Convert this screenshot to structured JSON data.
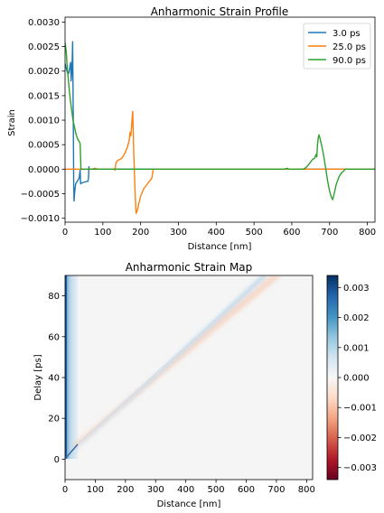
{
  "chart_data": [
    {
      "type": "line",
      "title": "Anharmonic Strain Profile",
      "xlabel": "Distance [nm]",
      "ylabel": "Strain",
      "xlim": [
        0,
        820
      ],
      "ylim": [
        -0.00108,
        0.0031
      ],
      "xticks": [
        0,
        100,
        200,
        300,
        400,
        500,
        600,
        700,
        800
      ],
      "xtick_labels": [
        "0",
        "100",
        "200",
        "300",
        "400",
        "500",
        "600",
        "700",
        "800"
      ],
      "yticks": [
        -0.001,
        -0.0005,
        0,
        0.0005,
        0.001,
        0.0015,
        0.002,
        0.0025,
        0.003
      ],
      "ytick_labels": [
        "−0.0010",
        "−0.0005",
        "0.0000",
        "0.0005",
        "0.0010",
        "0.0015",
        "0.0020",
        "0.0025",
        "0.0030"
      ],
      "legend_position": "top-right",
      "grid": false,
      "series": [
        {
          "name": "3.0 ps",
          "color": "#1f77b4",
          "points": [
            [
              0,
              0.00215
            ],
            [
              3,
              0.00205
            ],
            [
              6,
              0.00198
            ],
            [
              9,
              0.00195
            ],
            [
              11,
              0.002
            ],
            [
              13,
              0.0021
            ],
            [
              15,
              0.00218
            ],
            [
              16,
              0.0018
            ],
            [
              17,
              0.0019
            ],
            [
              18,
              0.002
            ],
            [
              19,
              0.0022
            ],
            [
              20,
              0.0026
            ],
            [
              21,
              0.0017
            ],
            [
              22,
              0.0008
            ],
            [
              23,
              -0.00035
            ],
            [
              24,
              -0.00065
            ],
            [
              25,
              -0.0005
            ],
            [
              28,
              -0.0003
            ],
            [
              32,
              -0.00025
            ],
            [
              36,
              -0.0002
            ],
            [
              38,
              -0.00015
            ],
            [
              40,
              0.0
            ],
            [
              41,
              -0.0003
            ],
            [
              44,
              -0.00028
            ],
            [
              48,
              -0.00027
            ],
            [
              52,
              -0.00026
            ],
            [
              56,
              -0.00025
            ],
            [
              60,
              -0.00025
            ],
            [
              62,
              -0.0002
            ],
            [
              63,
              5e-05
            ],
            [
              64,
              0.0
            ],
            [
              70,
              0.0
            ],
            [
              90,
              0.0
            ],
            [
              820,
              0.0
            ]
          ]
        },
        {
          "name": "25.0 ps",
          "color": "#ff7f0e",
          "points": [
            [
              0,
              0.0
            ],
            [
              70,
              0.0
            ],
            [
              80,
              2e-05
            ],
            [
              85,
              0.0
            ],
            [
              130,
              0.0
            ],
            [
              132,
              -2e-05
            ],
            [
              134,
              0.0001
            ],
            [
              136,
              0.00015
            ],
            [
              140,
              0.00018
            ],
            [
              145,
              0.0002
            ],
            [
              150,
              0.00022
            ],
            [
              155,
              0.00028
            ],
            [
              160,
              0.00035
            ],
            [
              165,
              0.00045
            ],
            [
              170,
              0.0006
            ],
            [
              172,
              0.00075
            ],
            [
              174,
              0.00068
            ],
            [
              176,
              0.00085
            ],
            [
              178,
              0.0011
            ],
            [
              179,
              0.00118
            ],
            [
              180,
              0.0009
            ],
            [
              182,
              0.0003
            ],
            [
              184,
              -0.0002
            ],
            [
              186,
              -0.0006
            ],
            [
              188,
              -0.0009
            ],
            [
              191,
              -0.00085
            ],
            [
              195,
              -0.0007
            ],
            [
              200,
              -0.00055
            ],
            [
              205,
              -0.00045
            ],
            [
              210,
              -0.00038
            ],
            [
              215,
              -0.00033
            ],
            [
              220,
              -0.00028
            ],
            [
              225,
              -0.00023
            ],
            [
              228,
              -0.0002
            ],
            [
              230,
              -0.00017
            ],
            [
              232,
              -5e-05
            ],
            [
              234,
              0.0
            ],
            [
              240,
              0.0
            ],
            [
              820,
              0.0
            ]
          ]
        },
        {
          "name": "90.0 ps",
          "color": "#2ca02c",
          "points": [
            [
              0,
              0.00258
            ],
            [
              3,
              0.0024
            ],
            [
              6,
              0.00205
            ],
            [
              9,
              0.0018
            ],
            [
              12,
              0.00155
            ],
            [
              15,
              0.00135
            ],
            [
              18,
              0.00118
            ],
            [
              21,
              0.001
            ],
            [
              25,
              0.00085
            ],
            [
              29,
              0.00072
            ],
            [
              33,
              0.00062
            ],
            [
              37,
              0.00057
            ],
            [
              40,
              0.00052
            ],
            [
              42,
              0.0
            ],
            [
              50,
              0.0
            ],
            [
              580,
              0.0
            ],
            [
              588,
              2e-05
            ],
            [
              592,
              0.0
            ],
            [
              630,
              0.0
            ],
            [
              635,
              2e-05
            ],
            [
              640,
              5e-05
            ],
            [
              645,
              0.0001
            ],
            [
              650,
              0.00015
            ],
            [
              655,
              0.0002
            ],
            [
              660,
              0.00022
            ],
            [
              664,
              0.0003
            ],
            [
              666,
              0.00025
            ],
            [
              668,
              0.0005
            ],
            [
              670,
              0.00065
            ],
            [
              672,
              0.0007
            ],
            [
              675,
              0.00062
            ],
            [
              680,
              0.00045
            ],
            [
              685,
              0.00025
            ],
            [
              690,
              0.0
            ],
            [
              695,
              -0.00025
            ],
            [
              700,
              -0.00045
            ],
            [
              705,
              -0.00058
            ],
            [
              708,
              -0.00062
            ],
            [
              712,
              -0.0005
            ],
            [
              718,
              -0.0003
            ],
            [
              725,
              -0.00015
            ],
            [
              732,
              -7e-05
            ],
            [
              738,
              -3e-05
            ],
            [
              741,
              0.0
            ],
            [
              745,
              0.0
            ],
            [
              820,
              0.0
            ]
          ]
        }
      ]
    },
    {
      "type": "heatmap",
      "title": "Anharmonic Strain Map",
      "xlabel": "Distance [nm]",
      "ylabel": "Delay [ps]",
      "xlim": [
        0,
        820
      ],
      "ylim": [
        -10,
        90
      ],
      "xticks": [
        0,
        100,
        200,
        300,
        400,
        500,
        600,
        700,
        800
      ],
      "xtick_labels": [
        "0",
        "100",
        "200",
        "300",
        "400",
        "500",
        "600",
        "700",
        "800"
      ],
      "yticks": [
        0,
        20,
        40,
        60,
        80
      ],
      "ytick_labels": [
        "0",
        "20",
        "40",
        "60",
        "80"
      ],
      "colormap": "RdBu",
      "colorbar": {
        "range": [
          -0.0034,
          0.0034
        ],
        "ticks": [
          -0.003,
          -0.002,
          -0.001,
          0,
          0.001,
          0.002,
          0.003
        ],
        "tick_labels": [
          "−0.003",
          "−0.002",
          "−0.001",
          "0.000",
          "0.001",
          "0.002",
          "0.003"
        ]
      },
      "features": [
        {
          "kind": "surface-band",
          "x_range": [
            0,
            42
          ],
          "delay_range": [
            0,
            90
          ],
          "max_strain": 0.0034
        },
        {
          "kind": "compressive-front",
          "from": [
            0,
            0
          ],
          "to": [
            670,
            90
          ],
          "strain": 0.0007
        },
        {
          "kind": "tensile-front",
          "from": [
            30,
            5
          ],
          "to": [
            710,
            90
          ],
          "strain": -0.0006
        }
      ]
    }
  ]
}
